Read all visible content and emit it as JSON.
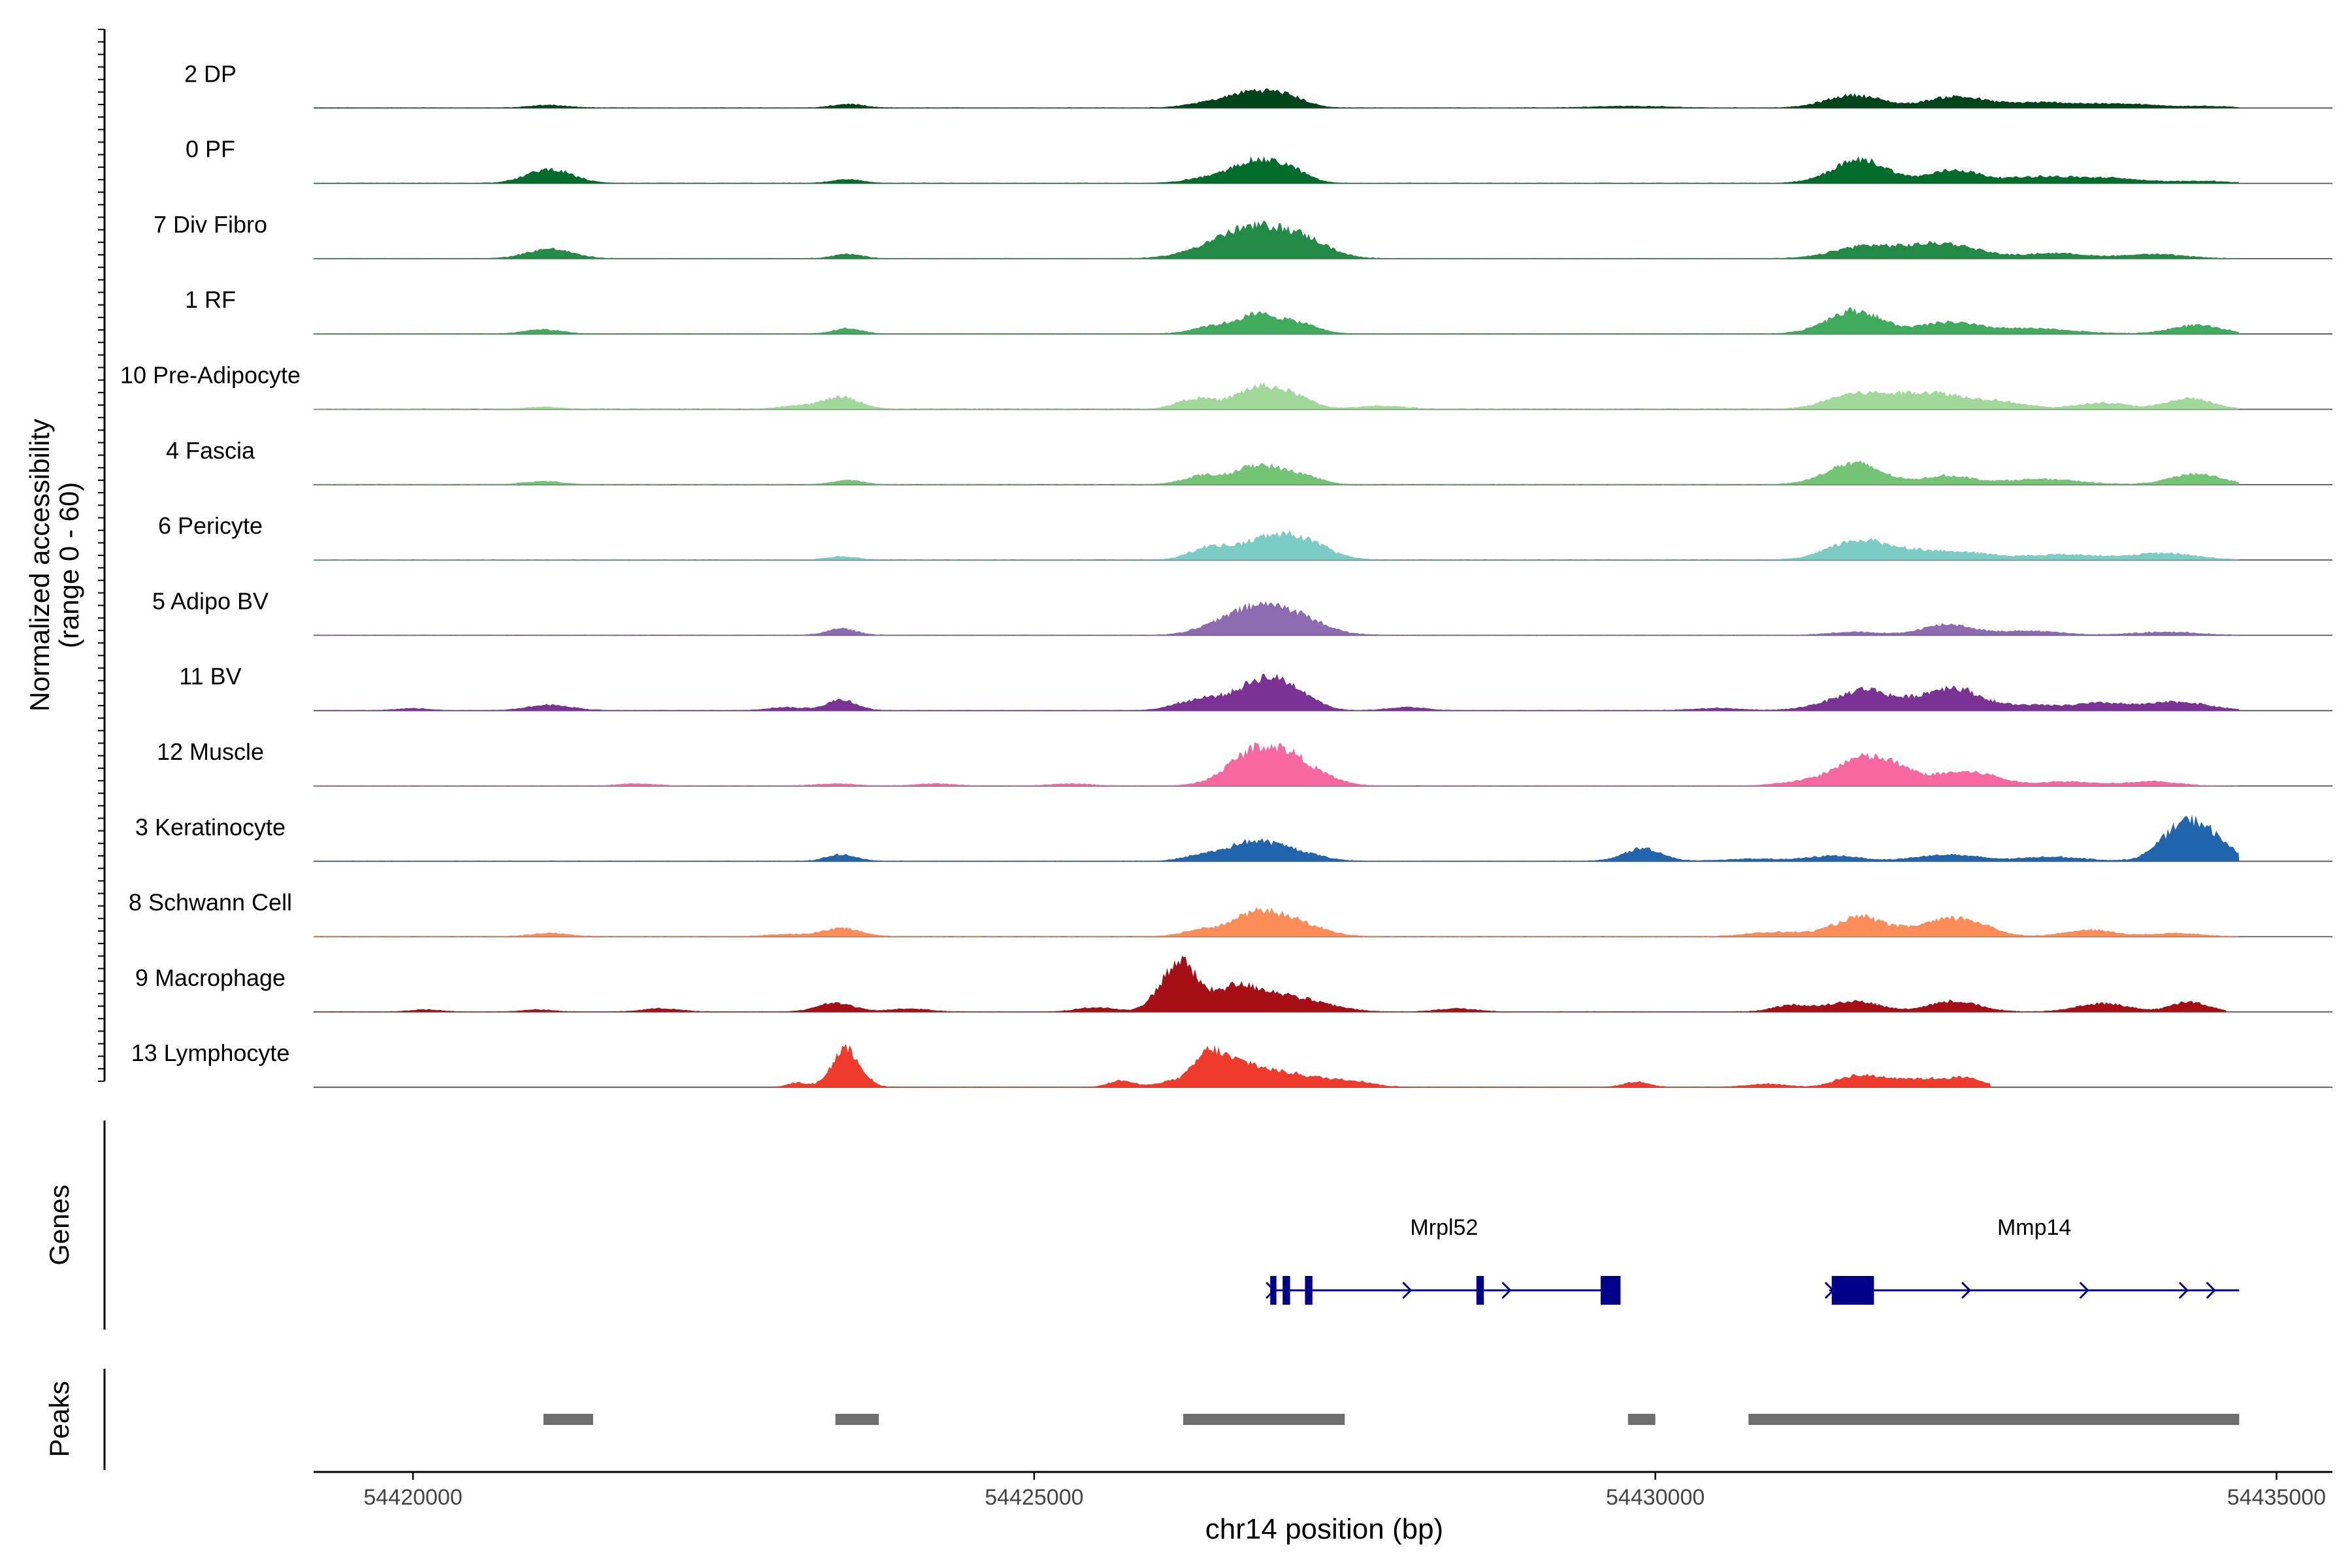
{
  "chart_data": {
    "type": "area",
    "title": "",
    "ylabel_line1": "Normalized accessibility",
    "ylabel_line2": "(range 0 - 60)",
    "y_range": [
      0,
      60
    ],
    "xlabel": "chr14 position (bp)",
    "xlim": [
      54419200,
      54435450
    ],
    "x_ticks": [
      {
        "value": 54420000,
        "label": "54420000"
      },
      {
        "value": 54425000,
        "label": "54425000"
      },
      {
        "value": 54430000,
        "label": "54430000"
      },
      {
        "value": 54435000,
        "label": "54435000"
      }
    ],
    "tracks": [
      {
        "name": "2 DP",
        "color": "#00441b",
        "start": 54419200,
        "end": 54434700,
        "peaks": [
          [
            54421100,
            2.5,
            150
          ],
          [
            54423500,
            3.5,
            120
          ],
          [
            54426750,
            15,
            200
          ],
          [
            54427050,
            8,
            150
          ],
          [
            54426350,
            3.5,
            150
          ],
          [
            54431600,
            12,
            220
          ],
          [
            54432400,
            10,
            220
          ],
          [
            54433100,
            5,
            350
          ],
          [
            54433800,
            3,
            250
          ],
          [
            54429800,
            1.5,
            300
          ],
          [
            54434400,
            1.5,
            200
          ]
        ]
      },
      {
        "name": "0 PF",
        "color": "#006d2c",
        "start": 54419200,
        "end": 54434700,
        "peaks": [
          [
            54421100,
            13,
            180
          ],
          [
            54423500,
            3.5,
            120
          ],
          [
            54426750,
            20,
            180
          ],
          [
            54427050,
            12,
            150
          ],
          [
            54426350,
            4,
            150
          ],
          [
            54431650,
            22,
            220
          ],
          [
            54432400,
            12,
            200
          ],
          [
            54433100,
            6,
            300
          ],
          [
            54433700,
            4,
            250
          ],
          [
            54434400,
            2,
            200
          ]
        ]
      },
      {
        "name": "7 Div Fibro",
        "color": "#238b45",
        "start": 54419200,
        "end": 54434700,
        "peaks": [
          [
            54421100,
            9,
            180
          ],
          [
            54423500,
            4,
            120
          ],
          [
            54426500,
            12,
            250
          ],
          [
            54426850,
            24,
            250
          ],
          [
            54427200,
            12,
            200
          ],
          [
            54431700,
            12,
            250
          ],
          [
            54432200,
            10,
            200
          ],
          [
            54432500,
            8,
            200
          ],
          [
            54433200,
            5,
            250
          ],
          [
            54434000,
            4,
            250
          ]
        ]
      },
      {
        "name": "1 RF",
        "color": "#41ab5d",
        "start": 54419200,
        "end": 54434700,
        "peaks": [
          [
            54421050,
            4,
            150
          ],
          [
            54423500,
            5,
            120
          ],
          [
            54426400,
            6,
            150
          ],
          [
            54426800,
            18,
            180
          ],
          [
            54427150,
            8,
            150
          ],
          [
            54431600,
            22,
            220
          ],
          [
            54432350,
            10,
            220
          ],
          [
            54433000,
            5,
            350
          ],
          [
            54434350,
            8,
            200
          ]
        ]
      },
      {
        "name": "10 Pre-Adipocyte",
        "color": "#a1d99b",
        "start": 54419200,
        "end": 54434700,
        "peaks": [
          [
            54421050,
            2,
            150
          ],
          [
            54423450,
            11,
            150
          ],
          [
            54423100,
            3,
            150
          ],
          [
            54426300,
            10,
            150
          ],
          [
            54426800,
            20,
            180
          ],
          [
            54427100,
            10,
            150
          ],
          [
            54427800,
            3,
            200
          ],
          [
            54431550,
            12,
            200
          ],
          [
            54431900,
            10,
            200
          ],
          [
            54432250,
            12,
            200
          ],
          [
            54432700,
            8,
            250
          ],
          [
            54433600,
            6,
            200
          ],
          [
            54434300,
            10,
            180
          ]
        ]
      },
      {
        "name": "4 Fascia",
        "color": "#74c476",
        "start": 54419200,
        "end": 54434700,
        "peaks": [
          [
            54421050,
            3,
            150
          ],
          [
            54423500,
            4,
            120
          ],
          [
            54426350,
            8,
            150
          ],
          [
            54426800,
            18,
            180
          ],
          [
            54427150,
            8,
            150
          ],
          [
            54431600,
            20,
            220
          ],
          [
            54432350,
            8,
            200
          ],
          [
            54433100,
            5,
            300
          ],
          [
            54434350,
            10,
            200
          ]
        ]
      },
      {
        "name": "6 Pericyte",
        "color": "#7bccc4",
        "start": 54419200,
        "end": 54434700,
        "peaks": [
          [
            54423450,
            3,
            120
          ],
          [
            54426400,
            10,
            150
          ],
          [
            54426900,
            20,
            250
          ],
          [
            54427200,
            10,
            200
          ],
          [
            54431600,
            16,
            220
          ],
          [
            54432000,
            8,
            250
          ],
          [
            54432500,
            6,
            250
          ],
          [
            54433300,
            5,
            300
          ],
          [
            54434100,
            6,
            250
          ]
        ]
      },
      {
        "name": "5 Adipo BV",
        "color": "#8c6bb1",
        "start": 54419200,
        "end": 54434700,
        "peaks": [
          [
            54423450,
            6,
            120
          ],
          [
            54426500,
            6,
            200
          ],
          [
            54426850,
            26,
            250
          ],
          [
            54427200,
            8,
            200
          ],
          [
            54432350,
            10,
            200
          ],
          [
            54433000,
            4,
            250
          ],
          [
            54434100,
            3,
            250
          ],
          [
            54431600,
            3,
            200
          ]
        ]
      },
      {
        "name": "11 BV",
        "color": "#7a3294",
        "start": 54419200,
        "end": 54434700,
        "peaks": [
          [
            54420000,
            2,
            120
          ],
          [
            54421100,
            5,
            180
          ],
          [
            54423450,
            10,
            120
          ],
          [
            54423000,
            3,
            150
          ],
          [
            54426150,
            4,
            120
          ],
          [
            54426400,
            10,
            150
          ],
          [
            54426850,
            30,
            200
          ],
          [
            54427150,
            10,
            150
          ],
          [
            54428000,
            3,
            150
          ],
          [
            54431450,
            8,
            200
          ],
          [
            54431700,
            14,
            150
          ],
          [
            54432000,
            8,
            200
          ],
          [
            54432400,
            20,
            200
          ],
          [
            54433000,
            5,
            300
          ],
          [
            54433600,
            6,
            200
          ],
          [
            54434200,
            8,
            250
          ],
          [
            54430500,
            2,
            200
          ]
        ]
      },
      {
        "name": "12 Muscle",
        "color": "#f768a1",
        "start": 54419200,
        "end": 54434700,
        "peaks": [
          [
            54421800,
            2,
            150
          ],
          [
            54423400,
            2,
            150
          ],
          [
            54424200,
            2,
            150
          ],
          [
            54425300,
            2,
            150
          ],
          [
            54426800,
            35,
            220
          ],
          [
            54427100,
            15,
            150
          ],
          [
            54427350,
            6,
            150
          ],
          [
            54431200,
            4,
            200
          ],
          [
            54431650,
            25,
            200
          ],
          [
            54431950,
            12,
            150
          ],
          [
            54432400,
            12,
            200
          ],
          [
            54432700,
            6,
            150
          ],
          [
            54433300,
            4,
            250
          ],
          [
            54434000,
            4,
            200
          ]
        ]
      },
      {
        "name": "3 Keratinocyte",
        "color": "#2166ac",
        "start": 54419200,
        "end": 54434700,
        "peaks": [
          [
            54423450,
            6,
            120
          ],
          [
            54426350,
            5,
            150
          ],
          [
            54426750,
            17,
            200
          ],
          [
            54427100,
            8,
            200
          ],
          [
            54429900,
            12,
            150
          ],
          [
            54431450,
            5,
            200
          ],
          [
            54432350,
            6,
            250
          ],
          [
            54433200,
            4,
            250
          ],
          [
            54434150,
            8,
            150
          ],
          [
            54434350,
            35,
            200
          ],
          [
            54430800,
            2,
            250
          ]
        ]
      },
      {
        "name": "8 Schwann Cell",
        "color": "#fc8d59",
        "start": 54419200,
        "end": 54434700,
        "peaks": [
          [
            54421100,
            3,
            150
          ],
          [
            54423450,
            8,
            150
          ],
          [
            54423000,
            2,
            150
          ],
          [
            54426350,
            6,
            150
          ],
          [
            54426800,
            22,
            200
          ],
          [
            54427150,
            10,
            200
          ],
          [
            54431000,
            4,
            250
          ],
          [
            54431650,
            18,
            200
          ],
          [
            54432200,
            8,
            200
          ],
          [
            54432500,
            14,
            200
          ],
          [
            54433500,
            6,
            200
          ],
          [
            54434200,
            3,
            200
          ]
        ]
      },
      {
        "name": "9 Macrophage",
        "color": "#a50f15",
        "start": 54419200,
        "end": 54434600,
        "peaks": [
          [
            54420100,
            2,
            120
          ],
          [
            54421000,
            2,
            120
          ],
          [
            54422000,
            3,
            150
          ],
          [
            54423400,
            8,
            150
          ],
          [
            54424000,
            3,
            150
          ],
          [
            54425500,
            4,
            150
          ],
          [
            54426050,
            16,
            120
          ],
          [
            54426200,
            38,
            120
          ],
          [
            54426600,
            22,
            180
          ],
          [
            54426950,
            14,
            200
          ],
          [
            54427300,
            6,
            200
          ],
          [
            54428400,
            3,
            150
          ],
          [
            54431100,
            6,
            150
          ],
          [
            54431600,
            10,
            200
          ],
          [
            54432400,
            10,
            200
          ],
          [
            54433600,
            8,
            200
          ],
          [
            54434300,
            9,
            150
          ]
        ]
      },
      {
        "name": "13 Lymphocyte",
        "color": "#ef3b2c",
        "start": 54422900,
        "end": 54432700,
        "peaks": [
          [
            54423100,
            4,
            80
          ],
          [
            54423450,
            25,
            100
          ],
          [
            54423550,
            15,
            100
          ],
          [
            54425700,
            6,
            100
          ],
          [
            54426100,
            5,
            120
          ],
          [
            54426400,
            30,
            120
          ],
          [
            54426650,
            18,
            150
          ],
          [
            54426950,
            12,
            200
          ],
          [
            54427300,
            6,
            200
          ],
          [
            54427600,
            4,
            150
          ],
          [
            54429850,
            5,
            100
          ],
          [
            54430900,
            3,
            150
          ],
          [
            54431600,
            10,
            150
          ],
          [
            54431900,
            7,
            150
          ],
          [
            54432200,
            6,
            150
          ],
          [
            54432500,
            8,
            150
          ]
        ]
      }
    ],
    "genes_label": "Genes",
    "genes": [
      {
        "name": "Mrpl52",
        "start": 54426900,
        "end": 54429700,
        "strand": "+",
        "color": "#00008b",
        "exons": [
          [
            54426900,
            54426950
          ],
          [
            54427000,
            54427060
          ],
          [
            54427180,
            54427240
          ],
          [
            54428560,
            54428620
          ],
          [
            54429560,
            54429720
          ]
        ],
        "arrows": [
          54428000,
          54428800
        ]
      },
      {
        "name": "Mmp14",
        "start": 54431400,
        "end": 54434700,
        "strand": "+",
        "color": "#00008b",
        "exons": [
          [
            54431420,
            54431760
          ]
        ],
        "arrows": [
          54432500,
          54433450,
          54434250,
          54434470
        ]
      }
    ],
    "peaks_label": "Peaks",
    "peak_regions": [
      [
        54421050,
        54421450
      ],
      [
        54423400,
        54423750
      ],
      [
        54426200,
        54427500
      ],
      [
        54429780,
        54430000
      ],
      [
        54430750,
        54434700
      ]
    ],
    "peak_color": "#6e6e6e"
  }
}
